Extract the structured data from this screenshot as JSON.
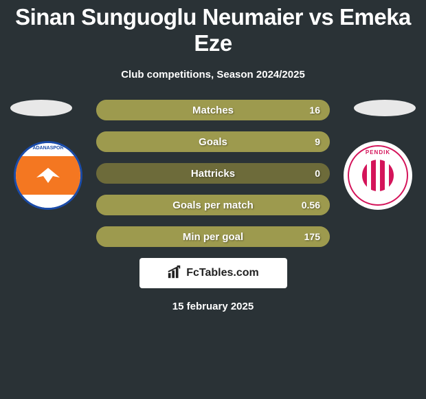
{
  "colors": {
    "background": "#2a3236",
    "bar_bg": "#6d6b3a",
    "bar_fill": "#9d9a4e",
    "adanaspor_orange": "#f47721",
    "adanaspor_blue": "#1a4ba8",
    "pendik_red": "#d4145a",
    "white": "#ffffff"
  },
  "title": "Sinan Sunguoglu Neumaier vs Emeka Eze",
  "subtitle": "Club competitions, Season 2024/2025",
  "date": "15 february 2025",
  "branding": {
    "icon": "bars-icon",
    "text": "FcTables.com"
  },
  "teams": {
    "left": {
      "name": "ADANASPOR",
      "badge": "adanaspor-badge"
    },
    "right": {
      "name": "PENDIK",
      "badge": "pendik-badge"
    }
  },
  "stats": [
    {
      "label": "Matches",
      "value": "16",
      "fill_pct": 100
    },
    {
      "label": "Goals",
      "value": "9",
      "fill_pct": 100
    },
    {
      "label": "Hattricks",
      "value": "0",
      "fill_pct": 0
    },
    {
      "label": "Goals per match",
      "value": "0.56",
      "fill_pct": 100
    },
    {
      "label": "Min per goal",
      "value": "175",
      "fill_pct": 100
    }
  ]
}
